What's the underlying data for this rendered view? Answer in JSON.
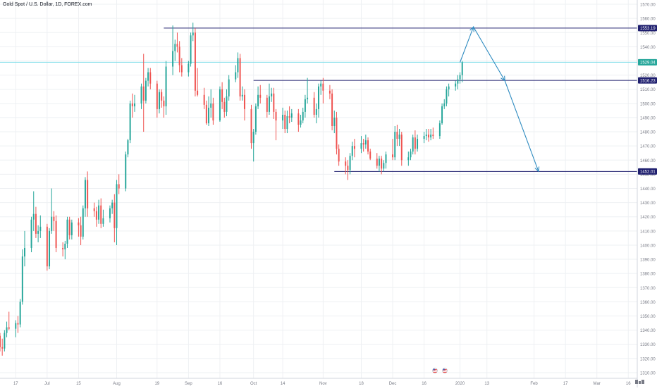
{
  "title": "Gold Spot / U.S. Dollar, 1D, FOREX.com",
  "colors": {
    "up": "#26a69a",
    "down": "#ef5350",
    "grid": "#eef0f3",
    "axis_text": "#787b86",
    "hline": "#1e1e6e",
    "label_bg": "#1e1e6e",
    "cyan_line": "#80deea",
    "arrow": "#2e8bc0",
    "price_tag": "#26a69a"
  },
  "chart_data": {
    "type": "candlestick",
    "y_ticks": [
      "1310.00",
      "1320.00",
      "1330.00",
      "1340.00",
      "1350.00",
      "1360.00",
      "1370.00",
      "1380.00",
      "1390.00",
      "1400.00",
      "1410.00",
      "1420.00",
      "1430.00",
      "1440.00",
      "1450.00",
      "1460.00",
      "1470.00",
      "1480.00",
      "1490.00",
      "1500.00",
      "1510.00",
      "1520.00",
      "1530.00",
      "1540.00",
      "1550.00",
      "1560.00",
      "1570.00"
    ],
    "y_range": [
      1306,
      1573
    ],
    "x_range": [
      "2019-06-10",
      "2020-03-20"
    ],
    "x_ticks": [
      {
        "label": "17",
        "date": "2019-06-17"
      },
      {
        "label": "Jul",
        "date": "2019-07-01"
      },
      {
        "label": "15",
        "date": "2019-07-15"
      },
      {
        "label": "Aug",
        "date": "2019-08-01"
      },
      {
        "label": "19",
        "date": "2019-08-19"
      },
      {
        "label": "Sep",
        "date": "2019-09-02"
      },
      {
        "label": "16",
        "date": "2019-09-16"
      },
      {
        "label": "Oct",
        "date": "2019-10-01"
      },
      {
        "label": "14",
        "date": "2019-10-14"
      },
      {
        "label": "Nov",
        "date": "2019-11-01"
      },
      {
        "label": "18",
        "date": "2019-11-18"
      },
      {
        "label": "Dec",
        "date": "2019-12-02"
      },
      {
        "label": "16",
        "date": "2019-12-16"
      },
      {
        "label": "2020",
        "date": "2020-01-01"
      },
      {
        "label": "13",
        "date": "2020-01-13"
      },
      {
        "label": "Feb",
        "date": "2020-02-03"
      },
      {
        "label": "17",
        "date": "2020-02-17"
      },
      {
        "label": "Mar",
        "date": "2020-03-02"
      },
      {
        "label": "16",
        "date": "2020-03-16"
      }
    ],
    "price_labels": [
      {
        "text": "1553.19",
        "value": 1553.19,
        "kind": "level"
      },
      {
        "text": "1529.04",
        "value": 1529.04,
        "kind": "last"
      },
      {
        "text": "1516.23",
        "value": 1516.23,
        "kind": "level"
      },
      {
        "text": "1452.01",
        "value": 1452.01,
        "kind": "level"
      }
    ],
    "horizontal_lines": [
      {
        "value": 1553.19,
        "from": "2019-08-22",
        "color": "hline"
      },
      {
        "value": 1529.04,
        "from": "2019-06-10",
        "color": "cyan_line"
      },
      {
        "value": 1516.23,
        "from": "2019-10-01",
        "color": "hline"
      },
      {
        "value": 1452.01,
        "from": "2019-11-06",
        "color": "hline"
      }
    ],
    "projection_path": [
      {
        "date": "2020-01-01",
        "value": 1529
      },
      {
        "date": "2020-01-07",
        "value": 1554
      },
      {
        "date": "2020-01-21",
        "value": 1516
      },
      {
        "date": "2020-02-05",
        "value": 1452
      }
    ],
    "ohlc": [
      [
        "2019-06-10",
        1336,
        1338,
        1325,
        1328
      ],
      [
        "2019-06-11",
        1328,
        1334,
        1322,
        1327
      ],
      [
        "2019-06-12",
        1327,
        1340,
        1325,
        1338
      ],
      [
        "2019-06-13",
        1338,
        1346,
        1335,
        1342
      ],
      [
        "2019-06-14",
        1342,
        1353,
        1340,
        1341
      ],
      [
        "2019-06-17",
        1341,
        1347,
        1335,
        1345
      ],
      [
        "2019-06-18",
        1345,
        1350,
        1338,
        1344
      ],
      [
        "2019-06-19",
        1344,
        1362,
        1342,
        1360
      ],
      [
        "2019-06-20",
        1360,
        1397,
        1358,
        1392
      ],
      [
        "2019-06-21",
        1392,
        1410,
        1385,
        1398
      ],
      [
        "2019-06-24",
        1398,
        1420,
        1395,
        1418
      ],
      [
        "2019-06-25",
        1418,
        1438,
        1410,
        1422
      ],
      [
        "2019-06-26",
        1422,
        1427,
        1405,
        1408
      ],
      [
        "2019-06-27",
        1408,
        1414,
        1402,
        1410
      ],
      [
        "2019-06-28",
        1410,
        1421,
        1405,
        1413
      ],
      [
        "2019-07-01",
        1413,
        1415,
        1382,
        1385
      ],
      [
        "2019-07-02",
        1385,
        1412,
        1383,
        1410
      ],
      [
        "2019-07-03",
        1410,
        1440,
        1408,
        1420
      ],
      [
        "2019-07-04",
        1420,
        1424,
        1410,
        1417
      ],
      [
        "2019-07-05",
        1417,
        1421,
        1395,
        1398
      ],
      [
        "2019-07-08",
        1398,
        1402,
        1392,
        1397
      ],
      [
        "2019-07-09",
        1397,
        1403,
        1390,
        1401
      ],
      [
        "2019-07-10",
        1401,
        1420,
        1398,
        1418
      ],
      [
        "2019-07-11",
        1418,
        1420,
        1404,
        1407
      ],
      [
        "2019-07-12",
        1407,
        1418,
        1404,
        1416
      ],
      [
        "2019-07-15",
        1416,
        1419,
        1406,
        1414
      ],
      [
        "2019-07-16",
        1414,
        1420,
        1400,
        1406
      ],
      [
        "2019-07-17",
        1406,
        1428,
        1404,
        1426
      ],
      [
        "2019-07-18",
        1426,
        1448,
        1420,
        1446
      ],
      [
        "2019-07-19",
        1446,
        1452,
        1420,
        1426
      ],
      [
        "2019-07-22",
        1426,
        1430,
        1420,
        1424
      ],
      [
        "2019-07-23",
        1424,
        1427,
        1413,
        1418
      ],
      [
        "2019-07-24",
        1418,
        1432,
        1415,
        1428
      ],
      [
        "2019-07-25",
        1428,
        1433,
        1412,
        1415
      ],
      [
        "2019-07-26",
        1415,
        1425,
        1413,
        1419
      ],
      [
        "2019-07-29",
        1419,
        1428,
        1416,
        1426
      ],
      [
        "2019-07-30",
        1426,
        1432,
        1422,
        1430
      ],
      [
        "2019-07-31",
        1430,
        1436,
        1402,
        1412
      ],
      [
        "2019-08-01",
        1412,
        1446,
        1400,
        1443
      ],
      [
        "2019-08-02",
        1443,
        1450,
        1436,
        1440
      ],
      [
        "2019-08-05",
        1440,
        1466,
        1438,
        1464
      ],
      [
        "2019-08-06",
        1464,
        1475,
        1462,
        1474
      ],
      [
        "2019-08-07",
        1474,
        1502,
        1472,
        1500
      ],
      [
        "2019-08-08",
        1500,
        1507,
        1490,
        1498
      ],
      [
        "2019-08-09",
        1498,
        1506,
        1494,
        1500
      ],
      [
        "2019-08-12",
        1500,
        1514,
        1496,
        1512
      ],
      [
        "2019-08-13",
        1512,
        1535,
        1480,
        1502
      ],
      [
        "2019-08-14",
        1502,
        1518,
        1500,
        1516
      ],
      [
        "2019-08-15",
        1516,
        1525,
        1512,
        1522
      ],
      [
        "2019-08-16",
        1522,
        1525,
        1510,
        1514
      ],
      [
        "2019-08-19",
        1514,
        1516,
        1490,
        1496
      ],
      [
        "2019-08-20",
        1496,
        1510,
        1493,
        1508
      ],
      [
        "2019-08-21",
        1508,
        1510,
        1497,
        1502
      ],
      [
        "2019-08-22",
        1502,
        1505,
        1490,
        1498
      ],
      [
        "2019-08-23",
        1498,
        1530,
        1492,
        1526
      ],
      [
        "2019-08-26",
        1526,
        1555,
        1520,
        1537
      ],
      [
        "2019-08-27",
        1537,
        1545,
        1530,
        1542
      ],
      [
        "2019-08-28",
        1542,
        1550,
        1536,
        1540
      ],
      [
        "2019-08-29",
        1540,
        1544,
        1522,
        1527
      ],
      [
        "2019-08-30",
        1527,
        1532,
        1519,
        1522
      ],
      [
        "2019-09-02",
        1522,
        1530,
        1519,
        1528
      ],
      [
        "2019-09-03",
        1528,
        1550,
        1526,
        1548
      ],
      [
        "2019-09-04",
        1548,
        1557,
        1544,
        1550
      ],
      [
        "2019-09-05",
        1550,
        1553,
        1505,
        1509
      ],
      [
        "2019-09-06",
        1509,
        1525,
        1505,
        1506
      ],
      [
        "2019-09-09",
        1506,
        1511,
        1496,
        1499
      ],
      [
        "2019-09-10",
        1499,
        1502,
        1485,
        1486
      ],
      [
        "2019-09-11",
        1486,
        1505,
        1484,
        1497
      ],
      [
        "2019-09-12",
        1497,
        1510,
        1490,
        1500
      ],
      [
        "2019-09-13",
        1500,
        1504,
        1485,
        1488
      ],
      [
        "2019-09-16",
        1488,
        1512,
        1487,
        1510
      ],
      [
        "2019-09-17",
        1510,
        1515,
        1496,
        1501
      ],
      [
        "2019-09-18",
        1501,
        1504,
        1490,
        1494
      ],
      [
        "2019-09-19",
        1494,
        1510,
        1491,
        1505
      ],
      [
        "2019-09-20",
        1505,
        1520,
        1502,
        1517
      ],
      [
        "2019-09-23",
        1517,
        1527,
        1515,
        1522
      ],
      [
        "2019-09-24",
        1522,
        1536,
        1518,
        1532
      ],
      [
        "2019-09-25",
        1532,
        1535,
        1502,
        1505
      ],
      [
        "2019-09-26",
        1505,
        1512,
        1502,
        1506
      ],
      [
        "2019-09-27",
        1506,
        1510,
        1488,
        1496
      ],
      [
        "2019-09-30",
        1496,
        1499,
        1468,
        1472
      ],
      [
        "2019-10-01",
        1472,
        1482,
        1459,
        1480
      ],
      [
        "2019-10-02",
        1480,
        1500,
        1478,
        1498
      ],
      [
        "2019-10-03",
        1498,
        1512,
        1496,
        1506
      ],
      [
        "2019-10-04",
        1506,
        1513,
        1500,
        1504
      ],
      [
        "2019-10-07",
        1504,
        1506,
        1490,
        1494
      ],
      [
        "2019-10-08",
        1494,
        1514,
        1492,
        1505
      ],
      [
        "2019-10-09",
        1505,
        1511,
        1501,
        1507
      ],
      [
        "2019-10-10",
        1507,
        1511,
        1489,
        1494
      ],
      [
        "2019-10-11",
        1494,
        1496,
        1474,
        1488
      ],
      [
        "2019-10-14",
        1488,
        1497,
        1482,
        1492
      ],
      [
        "2019-10-15",
        1492,
        1495,
        1479,
        1482
      ],
      [
        "2019-10-16",
        1482,
        1495,
        1479,
        1491
      ],
      [
        "2019-10-17",
        1491,
        1498,
        1486,
        1490
      ],
      [
        "2019-10-18",
        1490,
        1496,
        1487,
        1493
      ],
      [
        "2019-10-21",
        1493,
        1496,
        1480,
        1485
      ],
      [
        "2019-10-22",
        1485,
        1492,
        1483,
        1488
      ],
      [
        "2019-10-23",
        1488,
        1497,
        1486,
        1494
      ],
      [
        "2019-10-24",
        1494,
        1506,
        1490,
        1503
      ],
      [
        "2019-10-25",
        1503,
        1518,
        1500,
        1504
      ],
      [
        "2019-10-28",
        1504,
        1508,
        1490,
        1492
      ],
      [
        "2019-10-29",
        1492,
        1500,
        1486,
        1496
      ],
      [
        "2019-10-30",
        1496,
        1514,
        1490,
        1512
      ],
      [
        "2019-10-31",
        1512,
        1516,
        1506,
        1514
      ],
      [
        "2019-11-01",
        1514,
        1518,
        1500,
        1509
      ],
      [
        "2019-11-04",
        1509,
        1513,
        1503,
        1507
      ],
      [
        "2019-11-05",
        1507,
        1510,
        1481,
        1484
      ],
      [
        "2019-11-06",
        1484,
        1495,
        1479,
        1490
      ],
      [
        "2019-11-07",
        1490,
        1494,
        1464,
        1468
      ],
      [
        "2019-11-08",
        1468,
        1471,
        1456,
        1459
      ],
      [
        "2019-11-11",
        1459,
        1462,
        1450,
        1456
      ],
      [
        "2019-11-12",
        1456,
        1460,
        1446,
        1453
      ],
      [
        "2019-11-13",
        1453,
        1465,
        1450,
        1463
      ],
      [
        "2019-11-14",
        1463,
        1473,
        1460,
        1470
      ],
      [
        "2019-11-15",
        1470,
        1475,
        1462,
        1468
      ],
      [
        "2019-11-18",
        1468,
        1477,
        1465,
        1472
      ],
      [
        "2019-11-19",
        1472,
        1475,
        1466,
        1471
      ],
      [
        "2019-11-20",
        1471,
        1478,
        1468,
        1474
      ],
      [
        "2019-11-21",
        1474,
        1476,
        1464,
        1466
      ],
      [
        "2019-11-22",
        1466,
        1468,
        1460,
        1461
      ],
      [
        "2019-11-25",
        1461,
        1465,
        1454,
        1456
      ],
      [
        "2019-11-26",
        1456,
        1463,
        1452,
        1461
      ],
      [
        "2019-11-27",
        1461,
        1463,
        1450,
        1454
      ],
      [
        "2019-11-28",
        1454,
        1460,
        1452,
        1458
      ],
      [
        "2019-11-29",
        1458,
        1466,
        1454,
        1464
      ],
      [
        "2019-12-02",
        1464,
        1475,
        1460,
        1462
      ],
      [
        "2019-12-03",
        1462,
        1484,
        1460,
        1480
      ],
      [
        "2019-12-04",
        1480,
        1485,
        1470,
        1475
      ],
      [
        "2019-12-05",
        1475,
        1482,
        1470,
        1478
      ],
      [
        "2019-12-06",
        1478,
        1480,
        1456,
        1460
      ],
      [
        "2019-12-09",
        1460,
        1466,
        1456,
        1462
      ],
      [
        "2019-12-10",
        1462,
        1468,
        1460,
        1466
      ],
      [
        "2019-12-11",
        1466,
        1478,
        1464,
        1476
      ],
      [
        "2019-12-12",
        1476,
        1481,
        1464,
        1468
      ],
      [
        "2019-12-13",
        1468,
        1478,
        1466,
        1475
      ],
      [
        "2019-12-16",
        1475,
        1480,
        1472,
        1477
      ],
      [
        "2019-12-17",
        1477,
        1482,
        1474,
        1478
      ],
      [
        "2019-12-18",
        1478,
        1482,
        1473,
        1476
      ],
      [
        "2019-12-19",
        1476,
        1482,
        1474,
        1478
      ],
      [
        "2019-12-20",
        1478,
        1483,
        1475,
        1477
      ],
      [
        "2019-12-23",
        1477,
        1488,
        1475,
        1486
      ],
      [
        "2019-12-24",
        1486,
        1500,
        1485,
        1498
      ],
      [
        "2019-12-25",
        1498,
        1503,
        1496,
        1500
      ],
      [
        "2019-12-26",
        1500,
        1512,
        1498,
        1510
      ],
      [
        "2019-12-27",
        1510,
        1514,
        1505,
        1512
      ],
      [
        "2019-12-30",
        1512,
        1516,
        1509,
        1514
      ],
      [
        "2019-12-31",
        1514,
        1520,
        1510,
        1517
      ],
      [
        "2020-01-01",
        1517,
        1522,
        1514,
        1520
      ],
      [
        "2020-01-02",
        1520,
        1530,
        1515,
        1529
      ]
    ]
  }
}
